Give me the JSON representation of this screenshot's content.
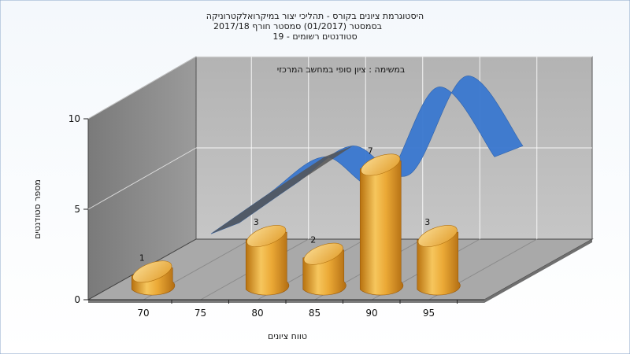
{
  "chart_data": {
    "type": "bar",
    "title_lines": [
      "היסטוגרמת ציונים בקורס - תהליכי יצור במיקרואלקטרוניקה",
      "בסמסטר  (01/2017)  סמסטר חורף 2017/18",
      "סטודנטים רשומים - 19"
    ],
    "annotation": "במשימה : ציון סופי במחשב המרכזי",
    "xlabel": "טווח ציונים",
    "ylabel": "מספר סטודנטים",
    "x_ticks": [
      "70",
      "75",
      "80",
      "85",
      "90",
      "95"
    ],
    "y_ticks": [
      "0",
      "5",
      "10"
    ],
    "ylim": [
      0,
      10
    ],
    "categories": [
      "70",
      "75",
      "80",
      "85",
      "90",
      "95"
    ],
    "values": [
      1,
      0,
      3,
      2,
      7,
      3
    ],
    "value_labels": [
      "1",
      "",
      "3",
      "2",
      "7",
      "3"
    ],
    "curve_values": [
      0.3,
      2.5,
      4.6,
      3.0,
      8.5,
      4.6
    ],
    "colors": {
      "bar": "#e8a93a",
      "bar_dark": "#b26d12",
      "bar_light": "#f8d688",
      "curve": "#3a78d0",
      "curve_shadow": "#555555",
      "back_wall": "#c0c0c0",
      "side_wall": "#8e8e8e",
      "floor": "#a8a8a8",
      "background": "#ffffff"
    }
  }
}
